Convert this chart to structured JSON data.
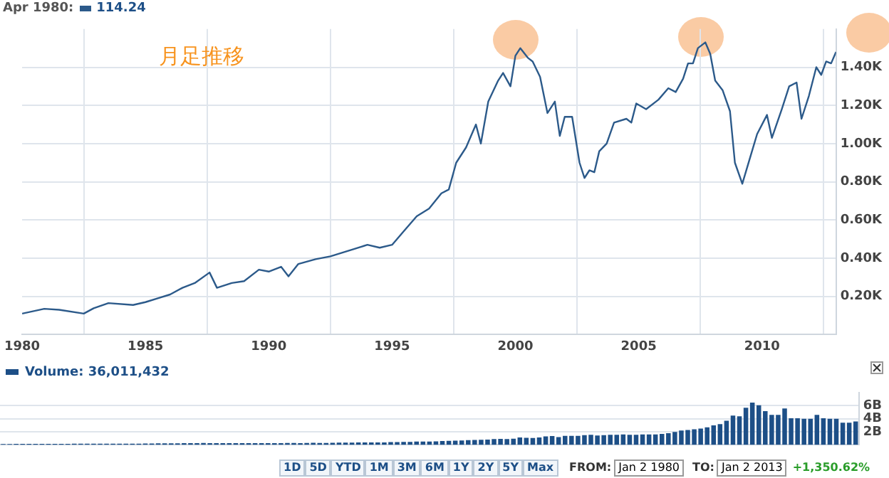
{
  "chart_data": [
    {
      "type": "line",
      "title": "月足推移",
      "annotations": [
        "Apr 1980:",
        "114.24"
      ],
      "series": [
        {
          "color": "#2c5a8a",
          "x": [
            1980,
            1980.9,
            1981.5,
            1982.5,
            1982.9,
            1983.5,
            1984.5,
            1985,
            1985.5,
            1986,
            1986.5,
            1987,
            1987.6,
            1987.9,
            1988.5,
            1989,
            1989.6,
            1990,
            1990.5,
            1990.8,
            1991.2,
            1991.9,
            1992.5,
            1993.5,
            1994,
            1994.5,
            1995,
            1995.5,
            1996,
            1996.5,
            1997,
            1997.3,
            1997.6,
            1998,
            1998.4,
            1998.6,
            1998.9,
            1999.3,
            1999.5,
            1999.8,
            2000,
            2000.2,
            2000.5,
            2000.7,
            2001,
            2001.3,
            2001.6,
            2001.8,
            2002,
            2002.3,
            2002.6,
            2002.8,
            2003,
            2003.2,
            2003.4,
            2003.7,
            2004,
            2004.5,
            2004.7,
            2004.9,
            2005.3,
            2005.8,
            2006.2,
            2006.5,
            2006.8,
            2007,
            2007.2,
            2007.4,
            2007.7,
            2007.9,
            2008.1,
            2008.4,
            2008.7,
            2008.9,
            2009.2,
            2009.5,
            2009.8,
            2010.2,
            2010.4,
            2010.8,
            2011.1,
            2011.4,
            2011.6,
            2011.9,
            2012.2,
            2012.4,
            2012.6,
            2012.8,
            2013
          ],
          "values": [
            110,
            135,
            130,
            110,
            138,
            165,
            155,
            170,
            190,
            210,
            245,
            270,
            325,
            245,
            270,
            280,
            340,
            330,
            355,
            305,
            370,
            395,
            410,
            450,
            470,
            455,
            470,
            545,
            620,
            660,
            740,
            760,
            900,
            980,
            1100,
            1000,
            1220,
            1330,
            1370,
            1300,
            1460,
            1500,
            1450,
            1430,
            1350,
            1160,
            1220,
            1040,
            1140,
            1140,
            900,
            820,
            860,
            850,
            960,
            1000,
            1110,
            1130,
            1110,
            1210,
            1180,
            1230,
            1290,
            1270,
            1340,
            1420,
            1420,
            1500,
            1530,
            1470,
            1330,
            1280,
            1170,
            900,
            790,
            920,
            1050,
            1150,
            1030,
            1180,
            1300,
            1320,
            1130,
            1250,
            1400,
            1360,
            1430,
            1420,
            1480
          ]
        }
      ],
      "xlim": [
        1980,
        2013
      ],
      "xticks": [
        1980,
        1985,
        1990,
        1995,
        2000,
        2005,
        2010
      ],
      "ylim": [
        0,
        1600
      ],
      "yticks": [
        {
          "value": 200,
          "label": "0.20K"
        },
        {
          "value": 400,
          "label": "0.40K"
        },
        {
          "value": 600,
          "label": "0.60K"
        },
        {
          "value": 800,
          "label": "0.80K"
        },
        {
          "value": 1000,
          "label": "1.00K"
        },
        {
          "value": 1200,
          "label": "1.20K"
        },
        {
          "value": 1400,
          "label": "1.40K"
        }
      ],
      "grid": true
    },
    {
      "type": "bar",
      "legend": "top left",
      "tick_labels": "y",
      "grid": "y",
      "categories": [
        null,
        null,
        null,
        null,
        null,
        null,
        null,
        null,
        null,
        null,
        null,
        null,
        null,
        null,
        null,
        null,
        null,
        null,
        null,
        null,
        null,
        null,
        null,
        null,
        null,
        null,
        null,
        null,
        null,
        null,
        null,
        null,
        null,
        null,
        null,
        null,
        null,
        null,
        null,
        null,
        null,
        null,
        null,
        null,
        null,
        null,
        null,
        null,
        null,
        null,
        null,
        null,
        null,
        null,
        null,
        null,
        null,
        null,
        null,
        null,
        null,
        null,
        null,
        null,
        null,
        null,
        null,
        null,
        null,
        null,
        null,
        null,
        null,
        null,
        null,
        null,
        null,
        null,
        null,
        null,
        null,
        null,
        null,
        null,
        null,
        null,
        null,
        null,
        null,
        null,
        null,
        null,
        null,
        null,
        null,
        null,
        null,
        null,
        null,
        null,
        null,
        null,
        null,
        null,
        null,
        null,
        null,
        null,
        null,
        null,
        null,
        null,
        null,
        null,
        null,
        null,
        null,
        null,
        null,
        null,
        null,
        null,
        null,
        null,
        null,
        null,
        null,
        null,
        null,
        null,
        null,
        null,
        null
      ],
      "annotations": [
        "1D",
        "5D",
        "YTD",
        "1M",
        "3M",
        "6M",
        "1Y",
        "2Y",
        "5Y",
        "Max",
        "FROM:",
        "Jan 2 1980",
        "TO:",
        "Jan 2 2013",
        "+1,350.62%"
      ],
      "series": [
        {
          "name": "Volume: 36,011,432",
          "color": "#1d4f87",
          "values": [
            0.04,
            0.04,
            0.05,
            0.05,
            0.05,
            0.05,
            0.05,
            0.05,
            0.05,
            0.06,
            0.07,
            0.08,
            0.08,
            0.09,
            0.08,
            0.08,
            0.09,
            0.09,
            0.09,
            0.09,
            0.1,
            0.1,
            0.11,
            0.12,
            0.13,
            0.14,
            0.14,
            0.15,
            0.18,
            0.18,
            0.18,
            0.2,
            0.16,
            0.16,
            0.16,
            0.16,
            0.16,
            0.16,
            0.17,
            0.17,
            0.16,
            0.16,
            0.16,
            0.17,
            0.19,
            0.19,
            0.18,
            0.2,
            0.21,
            0.2,
            0.2,
            0.21,
            0.26,
            0.26,
            0.26,
            0.27,
            0.29,
            0.28,
            0.28,
            0.29,
            0.33,
            0.34,
            0.36,
            0.37,
            0.41,
            0.42,
            0.42,
            0.43,
            0.5,
            0.52,
            0.54,
            0.58,
            0.62,
            0.65,
            0.68,
            0.72,
            0.8,
            0.83,
            0.81,
            0.85,
            1.05,
            0.98,
            0.97,
            1.05,
            1.2,
            1.25,
            1.1,
            1.3,
            1.3,
            1.3,
            1.4,
            1.45,
            1.35,
            1.4,
            1.45,
            1.45,
            1.5,
            1.45,
            1.45,
            1.5,
            1.5,
            1.5,
            1.6,
            1.7,
            1.9,
            2.1,
            2.2,
            2.3,
            2.4,
            2.6,
            2.9,
            3.1,
            3.6,
            4.4,
            4.3,
            5.6,
            6.4,
            6.0,
            5.1,
            4.5,
            4.5,
            5.5,
            4.0,
            4.0,
            3.9,
            3.9,
            4.5,
            4.0,
            3.9,
            3.9,
            3.3,
            3.3,
            3.5
          ]
        }
      ],
      "ylim": [
        0,
        8
      ],
      "yticks": [
        {
          "value": 2,
          "label": "2B"
        },
        {
          "value": 4,
          "label": "4B"
        },
        {
          "value": 6,
          "label": "6B"
        }
      ]
    }
  ]
}
